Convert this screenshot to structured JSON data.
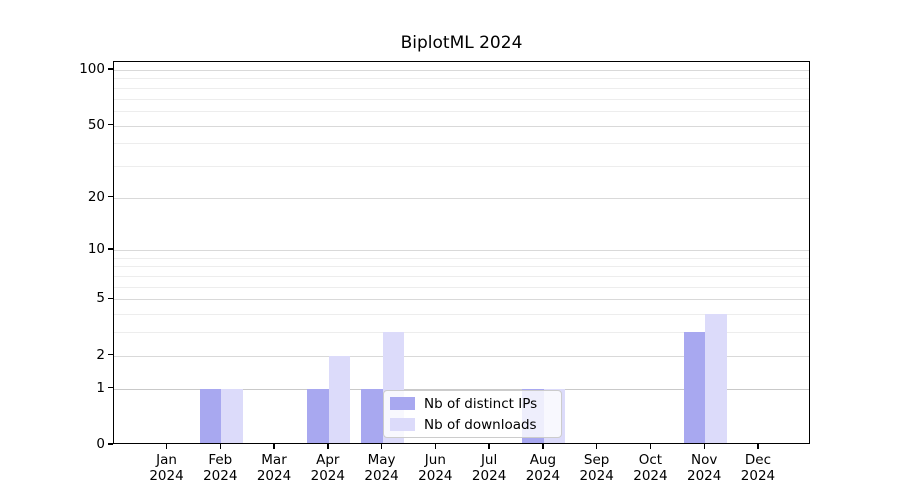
{
  "chart_data": {
    "type": "bar",
    "title": "BiplotML 2024",
    "categories": [
      "Jan 2024",
      "Feb 2024",
      "Mar 2024",
      "Apr 2024",
      "May 2024",
      "Jun 2024",
      "Jul 2024",
      "Aug 2024",
      "Sep 2024",
      "Oct 2024",
      "Nov 2024",
      "Dec 2024"
    ],
    "series": [
      {
        "name": "Nb of distinct IPs",
        "color": "#a8a8f0",
        "values": [
          0,
          1,
          0,
          1,
          1,
          0,
          0,
          1,
          0,
          0,
          3,
          0
        ]
      },
      {
        "name": "Nb of downloads",
        "color": "#dcdbfa",
        "values": [
          0,
          1,
          0,
          2,
          3,
          0,
          0,
          1,
          0,
          0,
          4,
          0
        ]
      }
    ],
    "xlabel": "",
    "ylabel": "",
    "yscale": "log1p",
    "ylim": [
      0,
      108
    ],
    "yticks": [
      0,
      1,
      2,
      5,
      10,
      20,
      50,
      100
    ],
    "yticks_minor": [
      3,
      4,
      6,
      7,
      8,
      9,
      30,
      40,
      60,
      70,
      80,
      90
    ],
    "grid": true,
    "legend_position": "lower center"
  },
  "legend": {
    "items": [
      {
        "label": "Nb of distinct IPs",
        "color": "#a8a8f0"
      },
      {
        "label": "Nb of downloads",
        "color": "#dcdbfa"
      }
    ]
  },
  "colors": {
    "bar_ips": "#a8a8f0",
    "bar_downloads": "#dcdbfa",
    "grid_major": "#d9d9d9",
    "grid_minor": "#ededed",
    "axis": "#000000",
    "background": "#ffffff"
  }
}
